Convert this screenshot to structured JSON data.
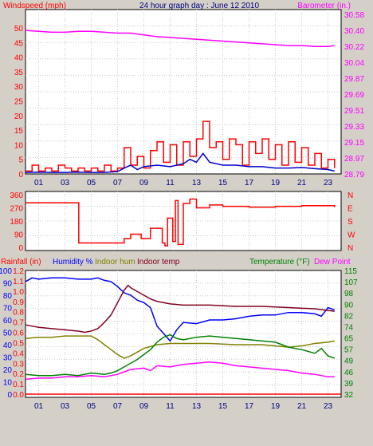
{
  "header": {
    "title": "24 hour graph day : June 12 2010",
    "windspeed_label": "Windspeed (mph)",
    "barometer_label": "Barometer (in.)"
  },
  "bottom_header": {
    "rainfall_label": "Rainfall (in)",
    "humidity_label": "Humidity %",
    "indoor_hum_label": "Indoor hum",
    "indoor_temp_label": "Indoor temp",
    "temperature_label": "Temperature (°F)",
    "dew_point_label": "Dew Point"
  },
  "x_ticks": [
    "01",
    "03",
    "05",
    "07",
    "09",
    "11",
    "13",
    "15",
    "17",
    "19",
    "21",
    "23"
  ],
  "colors": {
    "background": "#d4d0c8",
    "plot": "#ffffff",
    "windspeed": "#ff0000",
    "windspeed_avg": "#0000cc",
    "barometer": "#ff00ff",
    "direction": "#ff0000",
    "humidity": "#0000ff",
    "indoor_hum": "#808000",
    "indoor_temp": "#800020",
    "temperature": "#008000",
    "dew_point": "#ff00ff",
    "rainfall": "#ff0000"
  },
  "chart_data": [
    {
      "type": "line",
      "title": "24 hour graph day : June 12 2010",
      "x_unit": "hour",
      "xlim": [
        0,
        24
      ],
      "left_axis": {
        "label": "Windspeed (mph)",
        "ticks": [
          "0",
          "5",
          "10",
          "15",
          "20",
          "25",
          "30",
          "35",
          "40",
          "45",
          "50"
        ],
        "ylim": [
          0,
          50
        ]
      },
      "right_axis": {
        "label": "Barometer (in.)",
        "ticks": [
          "28.79",
          "28.97",
          "29.15",
          "29.33",
          "29.51",
          "29.69",
          "29.87",
          "30.04",
          "30.22",
          "30.40",
          "30.58"
        ],
        "ylim": [
          28.79,
          30.58
        ]
      },
      "series": [
        {
          "key": "barometer",
          "axis": "right",
          "x": [
            0,
            1,
            2,
            3,
            4,
            5,
            6,
            7,
            8,
            9,
            10,
            11,
            12,
            13,
            14,
            15,
            16,
            17,
            18,
            19,
            20,
            21,
            22,
            23,
            23.5
          ],
          "values": [
            30.4,
            30.39,
            30.38,
            30.38,
            30.39,
            30.39,
            30.38,
            30.37,
            30.37,
            30.35,
            30.33,
            30.32,
            30.31,
            30.3,
            30.29,
            30.28,
            30.27,
            30.26,
            30.25,
            30.24,
            30.23,
            30.23,
            30.22,
            30.22,
            30.23
          ]
        },
        {
          "key": "windspeed",
          "axis": "left",
          "x": [
            0,
            0.5,
            1,
            1.5,
            2,
            2.5,
            3,
            3.5,
            4,
            4.5,
            5,
            5.5,
            6,
            6.5,
            7,
            7.5,
            8,
            8.5,
            9,
            9.5,
            10,
            10.5,
            11,
            11.5,
            12,
            12.5,
            13,
            13.5,
            14,
            14.5,
            15,
            15.5,
            16,
            16.5,
            17,
            17.5,
            18,
            18.5,
            19,
            19.5,
            20,
            20.5,
            21,
            21.5,
            22,
            22.5,
            23,
            23.5
          ],
          "values": [
            1,
            3,
            1,
            2,
            1,
            3,
            2,
            1,
            2,
            1,
            2,
            1,
            3,
            1,
            2,
            9,
            3,
            6,
            2,
            8,
            11,
            4,
            10,
            3,
            11,
            6,
            12,
            18,
            9,
            11,
            5,
            12,
            10,
            3,
            11,
            7,
            12,
            5,
            10,
            3,
            11,
            4,
            9,
            3,
            7,
            2,
            5,
            2
          ]
        },
        {
          "key": "windspeed_avg",
          "axis": "left",
          "x": [
            0,
            1,
            2,
            3,
            4,
            5,
            6,
            7,
            7.5,
            8,
            8.5,
            9,
            10,
            11,
            12,
            12.5,
            13,
            13.5,
            14,
            15,
            16,
            17,
            18,
            19,
            20,
            21,
            22,
            23,
            23.5
          ],
          "values": [
            0.5,
            0.6,
            0.5,
            0.5,
            0.6,
            0.5,
            0.5,
            0.8,
            2,
            3,
            1.5,
            2.5,
            3,
            2.5,
            3.5,
            5,
            4,
            7,
            4,
            3,
            3,
            2.5,
            2.5,
            2,
            2,
            2.2,
            1.8,
            1.5,
            1
          ]
        }
      ]
    },
    {
      "type": "line",
      "title": "",
      "x_unit": "hour",
      "xlim": [
        0,
        24
      ],
      "left_axis": {
        "label": "",
        "ticks": [
          "0",
          "90",
          "180",
          "270",
          "360"
        ],
        "ylim": [
          0,
          360
        ]
      },
      "right_axis": {
        "label": "",
        "ticks": [
          "N",
          "W",
          "S",
          "E",
          "N"
        ]
      },
      "series": [
        {
          "key": "direction",
          "axis": "left",
          "x": [
            0,
            4,
            4.05,
            7.2,
            7.5,
            8,
            8.8,
            9.5,
            10.4,
            10.6,
            10.8,
            11.2,
            11.4,
            11.6,
            12,
            12.5,
            13,
            14,
            15,
            17,
            19,
            21,
            23.5
          ],
          "values": [
            305,
            305,
            30,
            30,
            60,
            90,
            60,
            130,
            30,
            10,
            200,
            40,
            320,
            20,
            300,
            330,
            270,
            290,
            280,
            275,
            280,
            285,
            275
          ]
        }
      ]
    },
    {
      "type": "line",
      "title": "",
      "x_unit": "hour",
      "xlim": [
        0,
        24
      ],
      "left_axis": {
        "labels": [
          "Rainfall (in)",
          "Humidity %"
        ],
        "humidity_ticks": [
          "0",
          "10",
          "20",
          "30",
          "40",
          "50",
          "60",
          "70",
          "80",
          "90",
          "100"
        ],
        "rain_ticks": [
          "0.0",
          "0.1",
          "0.2",
          "0.3",
          "0.4",
          "0.5",
          "0.6",
          "0.7",
          "0.8",
          "0.9",
          "1.0",
          "1.1",
          "1.2"
        ]
      },
      "right_axis": {
        "labels": [
          "Temperature (°F)",
          "Dew Point"
        ],
        "ticks": [
          "32",
          "39",
          "46",
          "49",
          "57",
          "65",
          "74",
          "82",
          "90",
          "98",
          "107",
          "115"
        ]
      },
      "series": [
        {
          "key": "humidity",
          "name": "Humidity %",
          "scale": "humidity",
          "x": [
            0,
            0.5,
            1,
            2,
            3,
            4,
            5,
            5.5,
            6,
            6.5,
            7,
            7.5,
            8,
            8.5,
            9,
            9.5,
            10,
            10.5,
            11,
            11.5,
            12,
            13,
            14,
            15,
            16,
            17,
            18,
            19,
            20,
            21,
            22,
            22.5,
            23,
            23.5
          ],
          "values": [
            91,
            94,
            93,
            94,
            94,
            93,
            93,
            94,
            92,
            91,
            87,
            82,
            80,
            76,
            74,
            70,
            55,
            49,
            43,
            52,
            58,
            57,
            60,
            60,
            61,
            63,
            64,
            64,
            66,
            66,
            65,
            63,
            70,
            68
          ]
        },
        {
          "key": "indoor_temp",
          "name": "Indoor temp",
          "scale": "humidity",
          "x": [
            0,
            1,
            2,
            3,
            4,
            4.5,
            5,
            5.5,
            6,
            6.5,
            7,
            7.5,
            7.8,
            8,
            8.5,
            9,
            9.5,
            10,
            11,
            12,
            13,
            14,
            16,
            18,
            20,
            22,
            23.5
          ],
          "values": [
            56,
            54,
            53,
            52,
            51,
            50,
            51,
            53,
            58,
            64,
            74,
            84,
            88,
            86,
            83,
            80,
            77,
            75,
            73,
            72,
            72,
            72,
            71,
            71,
            70,
            69,
            67
          ]
        },
        {
          "key": "indoor_hum",
          "name": "Indoor hum",
          "scale": "humidity",
          "x": [
            0,
            1,
            2,
            3,
            4,
            5,
            5.5,
            6,
            6.5,
            7,
            7.5,
            8,
            8.5,
            9,
            10,
            11,
            12,
            14,
            16,
            18,
            20,
            21,
            22,
            23,
            23.5
          ],
          "values": [
            45,
            46,
            46,
            47,
            47,
            47,
            44,
            40,
            36,
            32,
            29,
            31,
            34,
            37,
            40,
            41,
            41,
            41,
            40,
            40,
            38,
            39,
            41,
            42,
            43
          ]
        },
        {
          "key": "temperature",
          "name": "Temperature (°F)",
          "scale": "humidity",
          "x": [
            0,
            1,
            2,
            3,
            4,
            5,
            6,
            6.5,
            7,
            7.5,
            8,
            8.5,
            9,
            9.5,
            10,
            10.5,
            11,
            11.5,
            12,
            13,
            14,
            15,
            16,
            17,
            18,
            19,
            20,
            21,
            22,
            22.5,
            23,
            23.5
          ],
          "values": [
            16,
            15,
            15,
            16,
            15,
            17,
            16,
            17,
            19,
            22,
            25,
            28,
            32,
            36,
            42,
            46,
            48,
            45,
            44,
            46,
            47,
            46,
            45,
            44,
            43,
            42,
            38,
            36,
            33,
            37,
            31,
            29
          ]
        },
        {
          "key": "dew_point",
          "name": "Dew Point",
          "scale": "humidity",
          "x": [
            0,
            1,
            2,
            3,
            4,
            5,
            6,
            7,
            8,
            9,
            9.5,
            10,
            11,
            12,
            13,
            14,
            15,
            16,
            17,
            18,
            19,
            20,
            21,
            22,
            23,
            23.5
          ],
          "values": [
            12,
            13,
            13,
            14,
            14,
            15,
            14,
            16,
            20,
            21,
            19,
            23,
            22,
            24,
            25,
            26,
            25,
            23,
            22,
            21,
            20,
            19,
            17,
            16,
            14,
            14
          ]
        },
        {
          "key": "rainfall",
          "name": "Rainfall (in)",
          "scale": "rain",
          "x": [
            0,
            24
          ],
          "values": [
            0,
            0
          ]
        }
      ]
    }
  ]
}
